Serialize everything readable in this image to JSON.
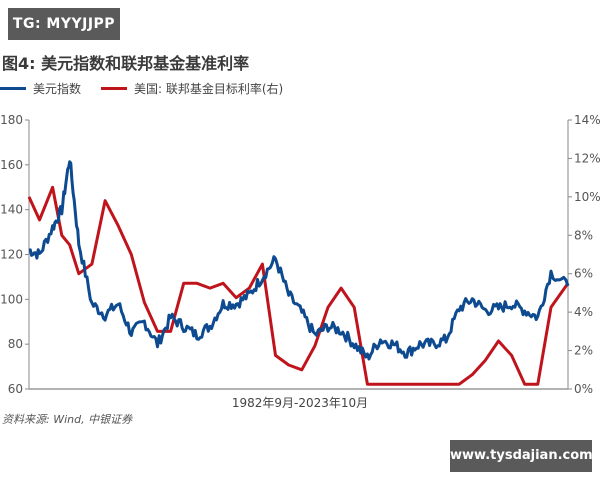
{
  "watermark_top": "TG: MYYJJPP",
  "watermark_bottom": "www.tysdajian.com",
  "figure_title": "图4: 美元指数和联邦基金基准利率",
  "legend": [
    {
      "label": "美元指数",
      "color": "#0d4a8f"
    },
    {
      "label": "美国: 联邦基金目标利率(右)",
      "color": "#c0141c"
    }
  ],
  "x_axis_label": "1982年9月-2023年10月",
  "source": "资料来源: Wind, 中银证券",
  "chart_data": {
    "type": "line",
    "title": "图4: 美元指数和联邦基金基准利率",
    "xlabel": "1982年9月-2023年10月",
    "ylabel_left": "美元指数",
    "ylabel_right": "美国: 联邦基金目标利率(右)",
    "ylim_left": [
      60,
      180
    ],
    "ylim_right": [
      0,
      14
    ],
    "left_ticks": [
      "60",
      "80",
      "100",
      "120",
      "140",
      "160",
      "180"
    ],
    "right_ticks": [
      "0%",
      "2%",
      "4%",
      "6%",
      "8%",
      "10%",
      "12%",
      "14%"
    ],
    "grid": false,
    "legend_position": "top-left",
    "x": [
      1982.7,
      1983.5,
      1984.5,
      1985.2,
      1985.8,
      1986.5,
      1987.5,
      1988.5,
      1989.5,
      1990.5,
      1991.5,
      1992.5,
      1993.5,
      1994.5,
      1995.5,
      1996.5,
      1997.5,
      1998.5,
      1999.5,
      2000.5,
      2001.5,
      2002.5,
      2003.5,
      2004.5,
      2005.5,
      2006.5,
      2007.5,
      2008.5,
      2009.5,
      2010.5,
      2011.5,
      2012.5,
      2013.5,
      2014.5,
      2015.5,
      2016.5,
      2017.5,
      2018.5,
      2019.5,
      2020.5,
      2021.5,
      2022.5,
      2023.8
    ],
    "series": [
      {
        "name": "美元指数",
        "axis": "left",
        "values": [
          122,
          120,
          132,
          140,
          163,
          125,
          98,
          93,
          98,
          85,
          90,
          80,
          92,
          88,
          84,
          88,
          98,
          98,
          102,
          110,
          118,
          102,
          94,
          84,
          88,
          86,
          80,
          74,
          82,
          80,
          76,
          80,
          80,
          82,
          96,
          100,
          95,
          96,
          98,
          95,
          92,
          112,
          106
        ]
      },
      {
        "name": "美国: 联邦基金目标利率(右)",
        "axis": "right",
        "values": [
          10.0,
          8.8,
          10.5,
          8.0,
          7.5,
          6.0,
          6.5,
          9.8,
          8.5,
          7.0,
          4.5,
          3.0,
          3.0,
          5.5,
          5.5,
          5.25,
          5.5,
          4.75,
          5.25,
          6.5,
          1.75,
          1.25,
          1.0,
          2.25,
          4.25,
          5.25,
          4.25,
          0.25,
          0.25,
          0.25,
          0.25,
          0.25,
          0.25,
          0.25,
          0.25,
          0.75,
          1.5,
          2.5,
          1.75,
          0.25,
          0.25,
          4.25,
          5.5
        ]
      }
    ]
  }
}
